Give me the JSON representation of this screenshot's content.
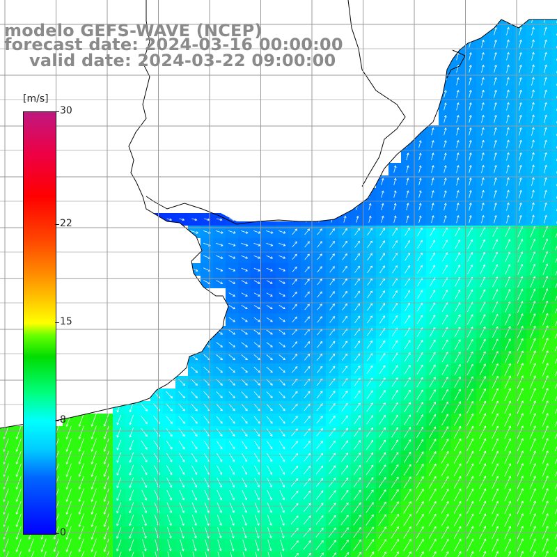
{
  "title": {
    "line1": "modelo GEFS-WAVE (NCEP)",
    "line2": "forecast date: 2024-03-16 00:00:00",
    "line3": "valid date: 2024-03-22 09:00:00"
  },
  "legend": {
    "unit": "[m/s]",
    "ticks": [
      {
        "label": "30",
        "value": 30
      },
      {
        "label": "22",
        "value": 22
      },
      {
        "label": "15",
        "value": 15
      },
      {
        "label": "8",
        "value": 8
      },
      {
        "label": "0",
        "value": 0
      }
    ],
    "range": [
      0,
      30
    ]
  },
  "colors": {
    "land": "#ffffff",
    "coastline": "#000000",
    "grid": "#9a9a9a",
    "arrow": "#ffffff",
    "title_text": "#8a8a8a"
  },
  "map": {
    "field": "wind speed with direction arrows",
    "grid_lines": true,
    "scale_min": 0,
    "scale_max": 30
  }
}
